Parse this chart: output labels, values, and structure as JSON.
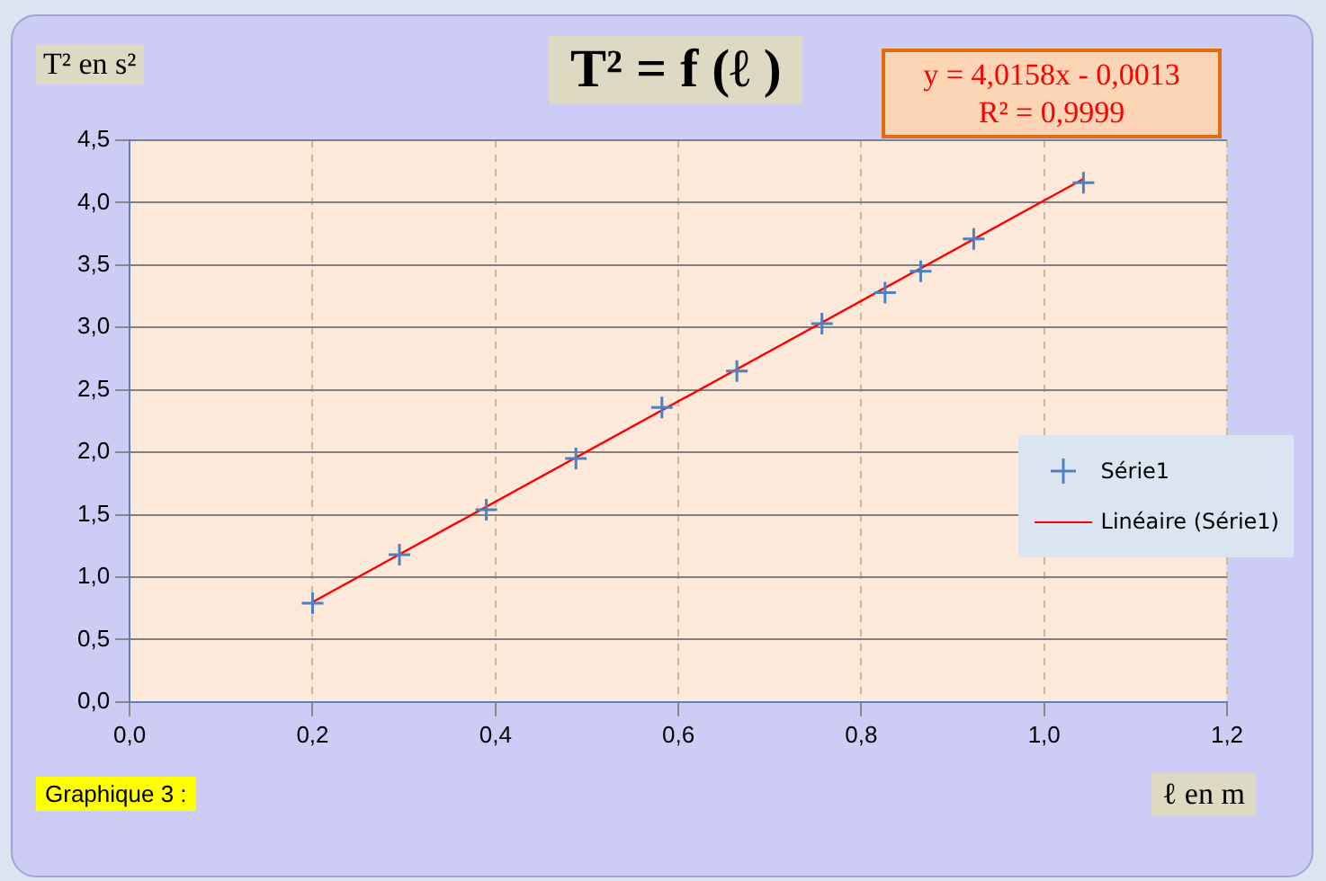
{
  "chart_data": {
    "type": "scatter",
    "title": "T² = f (ℓ )",
    "ylabel": "T² en s²",
    "xlabel": "ℓ en m",
    "annotations": [
      "y = 4,0158x - 0,0013",
      "R² = 0,9999",
      "Graphique 3 :"
    ],
    "series": [
      {
        "name": "Série1",
        "color": "#4f81bd",
        "marker": "cross",
        "x": [
          0.2,
          0.295,
          0.39,
          0.488,
          0.582,
          0.664,
          0.757,
          0.826,
          0.865,
          0.923,
          1.043
        ],
        "values": [
          0.79,
          1.18,
          1.54,
          1.95,
          2.36,
          2.65,
          3.03,
          3.28,
          3.45,
          3.71,
          4.16
        ]
      },
      {
        "name": "Linéaire (Série1)",
        "color": "#ff0000",
        "type": "line",
        "marker": "none",
        "x": [
          0.2,
          1.043
        ],
        "values": [
          0.8,
          4.19
        ]
      }
    ],
    "xlim": [
      0,
      1.2
    ],
    "xticks": [
      {
        "value": 0,
        "label": "0,0"
      },
      {
        "value": 0.2,
        "label": "0,2"
      },
      {
        "value": 0.4,
        "label": "0,4"
      },
      {
        "value": 0.6,
        "label": "0,6"
      },
      {
        "value": 0.8,
        "label": "0,8"
      },
      {
        "value": 1,
        "label": "1,0"
      },
      {
        "value": 1.2,
        "label": "1,2"
      }
    ],
    "ylim": [
      0,
      4.5
    ],
    "yticks": [
      {
        "value": 0,
        "label": "0,0"
      },
      {
        "value": 0.5,
        "label": "0,5"
      },
      {
        "value": 1,
        "label": "1,0"
      },
      {
        "value": 1.5,
        "label": "1,5"
      },
      {
        "value": 2,
        "label": "2,0"
      },
      {
        "value": 2.5,
        "label": "2,5"
      },
      {
        "value": 3,
        "label": "3,0"
      },
      {
        "value": 3.5,
        "label": "3,5"
      },
      {
        "value": 4,
        "label": "4,0"
      },
      {
        "value": 4.5,
        "label": "4,5"
      }
    ],
    "grid": true,
    "legend": "right"
  }
}
